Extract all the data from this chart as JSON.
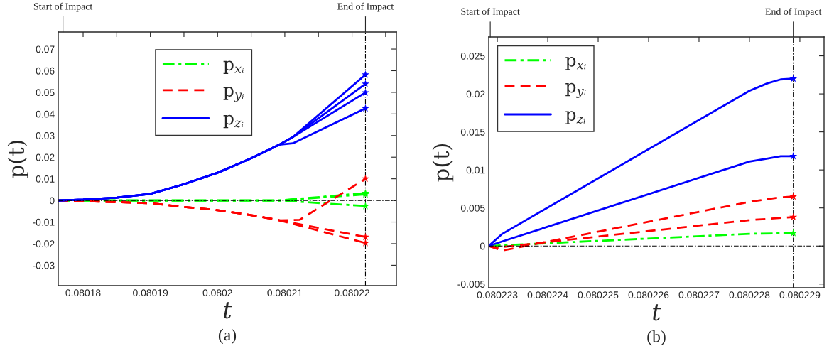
{
  "chart_data": [
    {
      "type": "line",
      "xlabel": "t",
      "ylabel": "p(t)",
      "annotations": [
        "(a)"
      ],
      "legend": "top center",
      "grid": false,
      "xlim": [
        0.0801763,
        0.0802266
      ],
      "ylim": [
        -0.0394,
        0.0779
      ],
      "xticks": [
        0.08018,
        {
          "value": 0.080185,
          "label": null
        },
        0.08019,
        {
          "value": 0.080195,
          "label": null
        },
        0.0802,
        {
          "value": 0.080205,
          "label": null
        },
        0.08021,
        {
          "value": 0.080215,
          "label": null
        },
        0.08022,
        {
          "value": 0.080225,
          "label": null
        }
      ],
      "yticks": [
        -0.03,
        -0.02,
        -0.01,
        0,
        0.01,
        0.02,
        0.03,
        0.04,
        0.05,
        0.06,
        0.07
      ],
      "ref_lines": [
        {
          "axis": "x",
          "value": 0.080177,
          "label": "Start of Impact"
        },
        {
          "axis": "x",
          "value": 0.080222,
          "label": "End of Impact",
          "line_style": "dashdot",
          "color": "#000000"
        },
        {
          "axis": "y",
          "value": 0,
          "line_style": "dashdot",
          "color": "#000000"
        }
      ],
      "series": [
        {
          "name": "p$_{xᵢ}$",
          "color": "#00ff00",
          "line_style": "dashdot",
          "x": [
            0.0801763,
            0.08019,
            0.0802092,
            0.080222
          ],
          "values": [
            0,
            0,
            0,
            0.0028
          ]
        },
        {
          "color": "#00ff00",
          "line_style": "dashdot",
          "x": [
            0.0801763,
            0.08019,
            0.0802092,
            0.080222
          ],
          "values": [
            0,
            0,
            0,
            0.0034
          ]
        },
        {
          "color": "#00ff00",
          "line_style": "dashdot",
          "x": [
            0.0801763,
            0.08019,
            0.0802092,
            0.080222
          ],
          "values": [
            0,
            0,
            0,
            -0.0026
          ]
        },
        {
          "type": "scatter",
          "color": "#00ff00",
          "marker": "star",
          "x": [
            0.080222,
            0.080222,
            0.080222
          ],
          "values": [
            0.0028,
            0.0034,
            -0.0026
          ]
        },
        {
          "name": "p$_{yᵢ}$",
          "color": "#ff0000",
          "line_style": "dashed",
          "x": [
            0.0801763,
            0.08018,
            0.08019,
            0.080195,
            0.0802,
            0.080205,
            0.0802092,
            0.0802122,
            0.080222
          ],
          "values": [
            0,
            -0.0003,
            -0.0013,
            -0.003,
            -0.0045,
            -0.0068,
            -0.0092,
            -0.009,
            0.01
          ]
        },
        {
          "color": "#ff0000",
          "line_style": "dashed",
          "x": [
            0.0801763,
            0.08018,
            0.08019,
            0.080195,
            0.0802,
            0.080205,
            0.0802092,
            0.080222
          ],
          "values": [
            0,
            -0.0003,
            -0.0013,
            -0.003,
            -0.0045,
            -0.0068,
            -0.0092,
            -0.0169
          ]
        },
        {
          "color": "#ff0000",
          "line_style": "dashed",
          "x": [
            0.0801763,
            0.08018,
            0.08019,
            0.080195,
            0.0802,
            0.080205,
            0.0802092,
            0.080222
          ],
          "values": [
            0,
            -0.0003,
            -0.0013,
            -0.003,
            -0.0045,
            -0.0068,
            -0.0092,
            -0.0197
          ]
        },
        {
          "type": "scatter",
          "color": "#ff0000",
          "marker": "star",
          "x": [
            0.080222,
            0.080222,
            0.080222
          ],
          "values": [
            0.01,
            -0.0169,
            -0.0197
          ]
        },
        {
          "name": "p$_{zᵢ}$",
          "color": "#0000ff",
          "line_style": "solid",
          "x": [
            0.0801763,
            0.08018,
            0.080185,
            0.08019,
            0.080195,
            0.0802,
            0.080205,
            0.0802092,
            0.0802112,
            0.080222
          ],
          "values": [
            0,
            0.0004,
            0.0013,
            0.003,
            0.0075,
            0.0128,
            0.0195,
            0.0258,
            0.0293,
            0.0582
          ]
        },
        {
          "color": "#0000ff",
          "line_style": "solid",
          "x": [
            0.0801763,
            0.08018,
            0.080185,
            0.08019,
            0.080195,
            0.0802,
            0.080205,
            0.0802092,
            0.0802112,
            0.080222
          ],
          "values": [
            0,
            0.0004,
            0.0013,
            0.003,
            0.0075,
            0.0128,
            0.0195,
            0.0258,
            0.0293,
            0.0539
          ]
        },
        {
          "color": "#0000ff",
          "line_style": "solid",
          "x": [
            0.0801763,
            0.08018,
            0.080185,
            0.08019,
            0.080195,
            0.0802,
            0.080205,
            0.0802092,
            0.0802112,
            0.080222
          ],
          "values": [
            0,
            0.0004,
            0.0013,
            0.003,
            0.0075,
            0.0128,
            0.0195,
            0.0258,
            0.0293,
            0.0499
          ]
        },
        {
          "color": "#0000ff",
          "line_style": "solid",
          "x": [
            0.0801763,
            0.08018,
            0.080185,
            0.08019,
            0.080195,
            0.0802,
            0.080205,
            0.0802092,
            0.0802112,
            0.080222
          ],
          "values": [
            0,
            0.0004,
            0.0013,
            0.003,
            0.0075,
            0.0128,
            0.0195,
            0.0258,
            0.0264,
            0.0426
          ]
        },
        {
          "type": "scatter",
          "color": "#0000ff",
          "marker": "star",
          "x": [
            0.080222,
            0.080222,
            0.080222,
            0.080222
          ],
          "values": [
            0.0582,
            0.0539,
            0.0499,
            0.0426
          ]
        }
      ]
    },
    {
      "type": "line",
      "xlabel": "t",
      "ylabel": "p(t)",
      "annotations": [
        "(b)"
      ],
      "legend": "top left",
      "grid": false,
      "xlim": [
        0.08022283,
        0.08022948
      ],
      "ylim": [
        -0.00549,
        0.02748
      ],
      "xticks": [
        0.080223,
        0.080224,
        0.080225,
        0.080226,
        0.080227,
        0.080228,
        0.080229
      ],
      "yticks": [
        -0.005,
        0,
        0.005,
        0.01,
        0.015,
        0.02,
        0.025
      ],
      "ref_lines": [
        {
          "axis": "x",
          "value": 0.08022286,
          "label": "Start of Impact"
        },
        {
          "axis": "x",
          "value": 0.08022887,
          "label": "End of Impact",
          "line_style": "dashdot",
          "color": "#000000"
        },
        {
          "axis": "y",
          "value": 0,
          "line_style": "dashdot",
          "color": "#000000"
        }
      ],
      "series": [
        {
          "name": "p$_{xᵢ}$",
          "color": "#00ff00",
          "line_style": "dashdot",
          "x": [
            0.08022283,
            0.080228,
            0.08022887
          ],
          "values": [
            0,
            0.0016,
            0.0017
          ]
        },
        {
          "type": "scatter",
          "color": "#00ff00",
          "marker": "star",
          "x": [
            0.08022887
          ],
          "values": [
            0.0017
          ]
        },
        {
          "name": "p$_{yᵢ}$",
          "color": "#ff0000",
          "line_style": "dashed",
          "x": [
            0.08022283,
            0.0802231,
            0.080228,
            0.08022862,
            0.08022887
          ],
          "values": [
            0,
            -0.0006,
            0.0058,
            0.0064,
            0.0065
          ]
        },
        {
          "color": "#ff0000",
          "line_style": "dashed",
          "x": [
            0.08022283,
            0.080223,
            0.080228,
            0.08022887
          ],
          "values": [
            0,
            -0.0002,
            0.0034,
            0.0038
          ]
        },
        {
          "type": "scatter",
          "color": "#ff0000",
          "marker": "star",
          "x": [
            0.08022887,
            0.08022887
          ],
          "values": [
            0.0065,
            0.0038
          ]
        },
        {
          "name": "p$_{zᵢ}$",
          "color": "#0000ff",
          "line_style": "solid",
          "x": [
            0.08022283,
            0.0802231,
            0.080228,
            0.08022836,
            0.08022862,
            0.08022887
          ],
          "values": [
            0,
            0.0016,
            0.0204,
            0.0214,
            0.0219,
            0.022
          ]
        },
        {
          "color": "#0000ff",
          "line_style": "solid",
          "x": [
            0.08022283,
            0.0802231,
            0.080228,
            0.08022836,
            0.08022862,
            0.08022887
          ],
          "values": [
            0,
            0.0006,
            0.0111,
            0.0115,
            0.0118,
            0.0118
          ]
        },
        {
          "type": "scatter",
          "color": "#0000ff",
          "marker": "star",
          "x": [
            0.08022887,
            0.08022887
          ],
          "values": [
            0.022,
            0.0118
          ]
        }
      ]
    }
  ]
}
